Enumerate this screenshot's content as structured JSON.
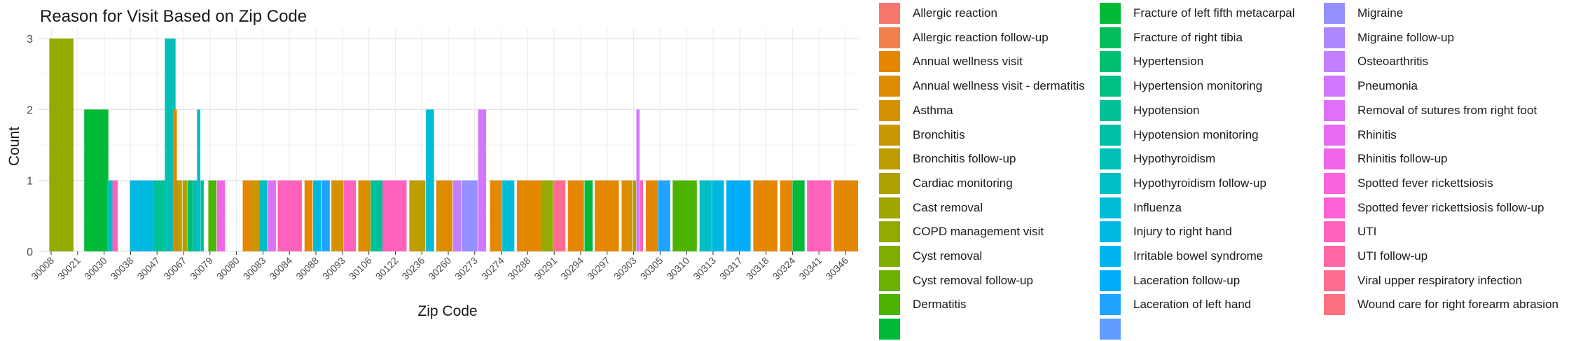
{
  "chart_data": {
    "type": "bar",
    "title": "Reason for Visit Based on Zip Code",
    "xlabel": "Zip Code",
    "ylabel": "Count",
    "ylim": [
      0,
      3.08
    ],
    "yticks": [
      "0",
      "1",
      "2",
      "3"
    ],
    "grid": true,
    "legend_position": "right",
    "categories": [
      "30008",
      "30021",
      "30030",
      "30038",
      "30047",
      "30067",
      "30079",
      "30080",
      "30083",
      "30084",
      "30088",
      "30093",
      "30106",
      "30122",
      "30236",
      "30260",
      "30273",
      "30274",
      "30288",
      "30291",
      "30294",
      "30297",
      "30303",
      "30305",
      "30310",
      "30313",
      "30317",
      "30318",
      "30324",
      "30341",
      "30346"
    ],
    "legend": [
      {
        "name": "Allergic reaction",
        "color": "#F8766D"
      },
      {
        "name": "Allergic reaction follow-up",
        "color": "#F27F4E"
      },
      {
        "name": "Annual wellness visit",
        "color": "#E58700"
      },
      {
        "name": "Annual wellness visit - dermatitis",
        "color": "#DD8D00"
      },
      {
        "name": "Asthma",
        "color": "#D49200"
      },
      {
        "name": "Bronchitis",
        "color": "#C99800"
      },
      {
        "name": "Bronchitis follow-up",
        "color": "#BD9D00"
      },
      {
        "name": "Cardiac monitoring",
        "color": "#B0A100"
      },
      {
        "name": "Cast removal",
        "color": "#A3A500"
      },
      {
        "name": "COPD management visit",
        "color": "#93AA00"
      },
      {
        "name": "Cyst removal",
        "color": "#81AD00"
      },
      {
        "name": "Cyst removal follow-up",
        "color": "#6BB100"
      },
      {
        "name": "Dermatitis",
        "color": "#4CB400"
      },
      {
        "name": "Fracture of left fifth metacarpal",
        "color": "#00BA38"
      },
      {
        "name": "Fracture of right tibia",
        "color": "#00BC59"
      },
      {
        "name": "Hypertension",
        "color": "#00BE70"
      },
      {
        "name": "Hypertension monitoring",
        "color": "#00BF84"
      },
      {
        "name": "Hypotension",
        "color": "#00C097"
      },
      {
        "name": "Hypotension monitoring",
        "color": "#00C0A8"
      },
      {
        "name": "Hypothyroidism",
        "color": "#00C0B8"
      },
      {
        "name": "Hypothyroidism follow-up",
        "color": "#00BFC4"
      },
      {
        "name": "Influenza",
        "color": "#00BCD8"
      },
      {
        "name": "Injury to right hand",
        "color": "#00B9E3"
      },
      {
        "name": "Irritable bowel syndrome",
        "color": "#00B4EF"
      },
      {
        "name": "Laceration follow-up",
        "color": "#00ADFA"
      },
      {
        "name": "Laceration of left hand",
        "color": "#1FA4FF"
      },
      {
        "name": "Migraine",
        "color": "#9590FF"
      },
      {
        "name": "Migraine follow-up",
        "color": "#AE87FF"
      },
      {
        "name": "Osteoarthritis",
        "color": "#C27FFF"
      },
      {
        "name": "Pneumonia",
        "color": "#D277FF"
      },
      {
        "name": "Removal of sutures from right foot",
        "color": "#DF70F8"
      },
      {
        "name": "Rhinitis",
        "color": "#E76BF3"
      },
      {
        "name": "Rhinitis follow-up",
        "color": "#F066EA"
      },
      {
        "name": "Spotted fever rickettsiosis",
        "color": "#F863DF"
      },
      {
        "name": "Spotted fever rickettsiosis follow-up",
        "color": "#FC61D5"
      },
      {
        "name": "UTI",
        "color": "#FF62BC"
      },
      {
        "name": "UTI follow-up",
        "color": "#FF67A4"
      },
      {
        "name": "Viral upper respiratory infection",
        "color": "#FF6C91"
      },
      {
        "name": "Wound care for right forearm abrasion",
        "color": "#FC717F"
      }
    ],
    "legend_partial_swatches": [
      "#00BA38",
      "#619CFF"
    ],
    "bars": [
      {
        "x": 30008.0,
        "w": 9,
        "h": 3,
        "c": "#93AA00"
      },
      {
        "x": 30021.0,
        "w": 9,
        "h": 2,
        "c": "#00BA38"
      },
      {
        "x": 30029.5,
        "w": 2,
        "h": 1,
        "c": "#00BFC4"
      },
      {
        "x": 30031.5,
        "w": 2,
        "h": 1,
        "c": "#FF62BC"
      },
      {
        "x": 30038.0,
        "w": 9,
        "h": 1,
        "c": "#00B9E3"
      },
      {
        "x": 30047.0,
        "w": 9,
        "h": 1,
        "c": "#00C097"
      },
      {
        "x": 30051.0,
        "w": 4,
        "h": 3,
        "c": "#00C0B8"
      },
      {
        "x": 30054.0,
        "w": 1.5,
        "h": 2,
        "c": "#E58700"
      },
      {
        "x": 30055.6,
        "w": 1.8,
        "h": 1,
        "c": "#BD9D00"
      },
      {
        "x": 30057.6,
        "w": 1.8,
        "h": 1,
        "c": "#B0A100"
      },
      {
        "x": 30059.5,
        "w": 1.8,
        "h": 1,
        "c": "#00BE70"
      },
      {
        "x": 30061.3,
        "w": 1.8,
        "h": 1,
        "c": "#00C0A8"
      },
      {
        "x": 30063.0,
        "w": 1.2,
        "h": 2,
        "c": "#00BCD8"
      },
      {
        "x": 30064.3,
        "w": 1.2,
        "h": 1,
        "c": "#00C097"
      },
      {
        "x": 30067.2,
        "w": 3,
        "h": 1,
        "c": "#4CB400"
      },
      {
        "x": 30070.4,
        "w": 3,
        "h": 1,
        "c": "#F066EA"
      },
      {
        "x": 30080.0,
        "w": 9,
        "h": 1,
        "c": "#E58700"
      },
      {
        "x": 30083.0,
        "w": 3,
        "h": 1,
        "c": "#C99800"
      },
      {
        "x": 30086.2,
        "w": 3,
        "h": 1,
        "c": "#00BFC4"
      },
      {
        "x": 30089.4,
        "w": 3,
        "h": 1,
        "c": "#DF70F8"
      },
      {
        "x": 30093.0,
        "w": 9,
        "h": 1,
        "c": "#FF62BC"
      },
      {
        "x": 30103.0,
        "w": 3,
        "h": 1,
        "c": "#E58700"
      },
      {
        "x": 30106.2,
        "w": 3,
        "h": 1,
        "c": "#00B9E3"
      },
      {
        "x": 30109.4,
        "w": 3,
        "h": 1,
        "c": "#1FA4FF"
      },
      {
        "x": 30113.0,
        "w": 4.5,
        "h": 1,
        "c": "#D49200"
      },
      {
        "x": 30117.6,
        "w": 4.5,
        "h": 1,
        "c": "#FF62BC"
      },
      {
        "x": 30123.0,
        "w": 4.5,
        "h": 1,
        "c": "#DD8D00"
      },
      {
        "x": 30127.6,
        "w": 4.5,
        "h": 1,
        "c": "#00C097"
      },
      {
        "x": 30132.0,
        "w": 9,
        "h": 1,
        "c": "#FF62BC"
      },
      {
        "x": 30142.0,
        "w": 6,
        "h": 1,
        "c": "#BD9D00"
      },
      {
        "x": 30148.2,
        "w": 3,
        "h": 2,
        "c": "#00BCD8"
      },
      {
        "x": 30152.0,
        "w": 6,
        "h": 1,
        "c": "#DD8D00"
      },
      {
        "x": 30158.2,
        "w": 3,
        "h": 1,
        "c": "#C27FFF"
      },
      {
        "x": 30161.4,
        "w": 6,
        "h": 1,
        "c": "#9590FF"
      },
      {
        "x": 30167.6,
        "w": 3,
        "h": 2,
        "c": "#D277FF"
      },
      {
        "x": 30172.0,
        "w": 4.5,
        "h": 1,
        "c": "#E58700"
      },
      {
        "x": 30176.6,
        "w": 4.5,
        "h": 1,
        "c": "#00BCD8"
      },
      {
        "x": 30182.0,
        "w": 9,
        "h": 1,
        "c": "#E58700"
      },
      {
        "x": 30191.0,
        "w": 4.5,
        "h": 1,
        "c": "#93AA00"
      },
      {
        "x": 30195.6,
        "w": 4.5,
        "h": 1,
        "c": "#FF6C91"
      },
      {
        "x": 30201.0,
        "w": 6,
        "h": 1,
        "c": "#E58700"
      },
      {
        "x": 30207.2,
        "w": 3,
        "h": 1,
        "c": "#00BA38"
      },
      {
        "x": 30211.0,
        "w": 9,
        "h": 1,
        "c": "#E58700"
      },
      {
        "x": 30221.0,
        "w": 4,
        "h": 1,
        "c": "#DD8D00"
      },
      {
        "x": 30225.2,
        "w": 1.2,
        "h": 1,
        "c": "#A3A500"
      },
      {
        "x": 30226.5,
        "w": 1.2,
        "h": 2,
        "c": "#D277FF"
      },
      {
        "x": 30227.8,
        "w": 1.2,
        "h": 1,
        "c": "#FF62BC"
      },
      {
        "x": 30230.0,
        "w": 4.5,
        "h": 1,
        "c": "#E58700"
      },
      {
        "x": 30234.6,
        "w": 4.5,
        "h": 1,
        "c": "#1FA4FF"
      },
      {
        "x": 30240.0,
        "w": 9,
        "h": 1,
        "c": "#4CB400"
      },
      {
        "x": 30250.0,
        "w": 4.5,
        "h": 1,
        "c": "#00BFC4"
      },
      {
        "x": 30254.6,
        "w": 4.5,
        "h": 1,
        "c": "#00B9E3"
      },
      {
        "x": 30260.0,
        "w": 9,
        "h": 1,
        "c": "#00ADFA"
      },
      {
        "x": 30270.0,
        "w": 9,
        "h": 1,
        "c": "#E58700"
      },
      {
        "x": 30280.0,
        "w": 4.5,
        "h": 1,
        "c": "#E58700"
      },
      {
        "x": 30284.6,
        "w": 4.5,
        "h": 1,
        "c": "#00BA38"
      },
      {
        "x": 30290.0,
        "w": 9,
        "h": 1,
        "c": "#FF62BC"
      },
      {
        "x": 30300.0,
        "w": 9,
        "h": 1,
        "c": "#E58700"
      }
    ]
  }
}
